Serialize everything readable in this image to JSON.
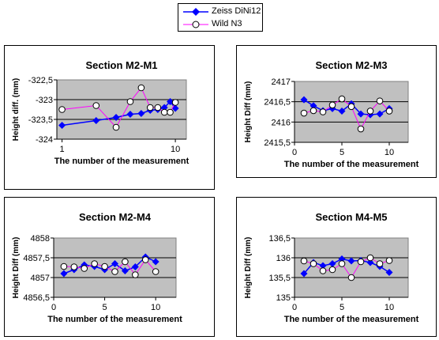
{
  "legend": {
    "series": [
      {
        "name": "Zeiss DiNi12",
        "color": "#0000ff",
        "marker": "diamond-filled"
      },
      {
        "name": "Wild N3",
        "color": "#ff00ff",
        "marker": "circle-open"
      }
    ]
  },
  "chart_data": [
    {
      "type": "line",
      "title": "Section M2-M1",
      "xlabel": "The number of the measurement",
      "ylabel": "Height diff. (mm)",
      "log_x": true,
      "x_ticks": [
        1,
        10
      ],
      "y_ticks": [
        -324,
        -323.5,
        -323,
        -322.5
      ],
      "y_tick_labels": [
        "-324",
        "-323,5",
        "-323",
        "-322,5"
      ],
      "ylim": [
        -324,
        -322.5
      ],
      "plot_background": "#c0c0c0",
      "grid": true,
      "x": [
        1,
        2,
        3,
        4,
        5,
        6,
        7,
        8,
        9,
        10
      ],
      "series": [
        {
          "name": "Zeiss DiNi12",
          "values": [
            -323.65,
            -323.53,
            -323.45,
            -323.37,
            -323.35,
            -323.27,
            -323.25,
            -323.2,
            -323.05,
            -323.22
          ]
        },
        {
          "name": "Wild N3",
          "values": [
            -323.25,
            -323.15,
            -323.7,
            -323.05,
            -322.7,
            -323.2,
            -323.2,
            -323.32,
            -323.32,
            -323.07
          ]
        }
      ]
    },
    {
      "type": "line",
      "title": "Section M2-M3",
      "xlabel": "The number of the measurement",
      "ylabel": "Height Diff (mm)",
      "x_ticks": [
        0,
        5,
        10
      ],
      "xlim": [
        0,
        12
      ],
      "y_ticks": [
        2415.5,
        2416,
        2416.5,
        2417
      ],
      "y_tick_labels": [
        "2415,5",
        "2416",
        "2416,5",
        "2417"
      ],
      "ylim": [
        2415.5,
        2417
      ],
      "plot_background": "#c0c0c0",
      "grid": true,
      "x": [
        1,
        2,
        3,
        4,
        5,
        6,
        7,
        8,
        9,
        10
      ],
      "series": [
        {
          "name": "Zeiss DiNi12",
          "values": [
            2416.55,
            2416.4,
            2416.28,
            2416.33,
            2416.27,
            2416.45,
            2416.2,
            2416.18,
            2416.2,
            2416.33
          ]
        },
        {
          "name": "Wild N3",
          "values": [
            2416.22,
            2416.28,
            2416.25,
            2416.42,
            2416.57,
            2416.38,
            2415.83,
            2416.27,
            2416.52,
            2416.27
          ]
        }
      ]
    },
    {
      "type": "line",
      "title": "Section M2-M4",
      "xlabel": "The number of the measurement",
      "ylabel": "Height Diff (mm)",
      "x_ticks": [
        0,
        5,
        10
      ],
      "xlim": [
        0,
        12
      ],
      "y_ticks": [
        4856.5,
        4857,
        4857.5,
        4858
      ],
      "y_tick_labels": [
        "4856,5",
        "4857",
        "4857,5",
        "4858"
      ],
      "ylim": [
        4856.5,
        4858
      ],
      "plot_background": "#c0c0c0",
      "grid": true,
      "x": [
        1,
        2,
        3,
        4,
        5,
        6,
        7,
        8,
        9,
        10
      ],
      "series": [
        {
          "name": "Zeiss DiNi12",
          "values": [
            4857.1,
            4857.2,
            4857.32,
            4857.28,
            4857.2,
            4857.35,
            4857.17,
            4857.27,
            4857.52,
            4857.4
          ]
        },
        {
          "name": "Wild N3",
          "values": [
            4857.28,
            4857.27,
            4857.23,
            4857.35,
            4857.28,
            4857.15,
            4857.4,
            4857.07,
            4857.45,
            4857.15
          ]
        }
      ]
    },
    {
      "type": "line",
      "title": "Section M4-M5",
      "xlabel": "The number of the measurement",
      "ylabel": "Height Diff (mm)",
      "x_ticks": [
        0,
        5,
        10
      ],
      "xlim": [
        0,
        12
      ],
      "y_ticks": [
        135,
        135.5,
        136,
        136.5
      ],
      "y_tick_labels": [
        "135",
        "135,5",
        "136",
        "136,5"
      ],
      "ylim": [
        135,
        136.5
      ],
      "plot_background": "#c0c0c0",
      "grid": true,
      "x": [
        1,
        2,
        3,
        4,
        5,
        6,
        7,
        8,
        9,
        10
      ],
      "series": [
        {
          "name": "Zeiss DiNi12",
          "values": [
            135.6,
            135.88,
            135.8,
            135.85,
            135.97,
            135.92,
            135.93,
            135.88,
            135.78,
            135.63
          ]
        },
        {
          "name": "Wild N3",
          "values": [
            135.92,
            135.85,
            135.67,
            135.7,
            135.85,
            135.5,
            135.9,
            136.0,
            135.85,
            135.93
          ]
        }
      ]
    }
  ]
}
